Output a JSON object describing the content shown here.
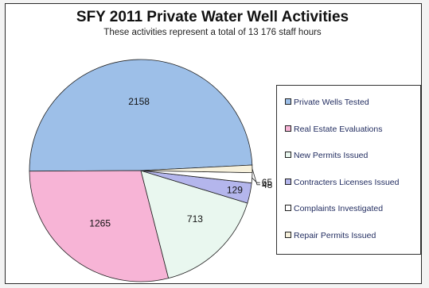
{
  "chart_data": {
    "type": "pie",
    "title": "SFY 2011 Private Water Well Activities",
    "subtitle": "These activities represent a total of 13 176 staff hours",
    "legend_position": "right",
    "slices": [
      {
        "label": "Private Wells Tested",
        "value": 2158,
        "value_label": "2158",
        "color": "#9dbfe8"
      },
      {
        "label": "Real Estate Evaluations",
        "value": 1265,
        "value_label": "1265",
        "color": "#f7b4d6"
      },
      {
        "label": "New Permits Issued",
        "value": 713,
        "value_label": "713",
        "color": "#e9f7ef"
      },
      {
        "label": "Contracters Licenses Issued",
        "value": 129,
        "value_label": "129",
        "color": "#b4b6ec"
      },
      {
        "label": "Complaints Investigated",
        "value": 65,
        "value_label": "65",
        "color": "#ffffff"
      },
      {
        "label": "Repair Permits Issued",
        "value": 48,
        "value_label": "48",
        "color": "#f7f1dc"
      }
    ]
  }
}
